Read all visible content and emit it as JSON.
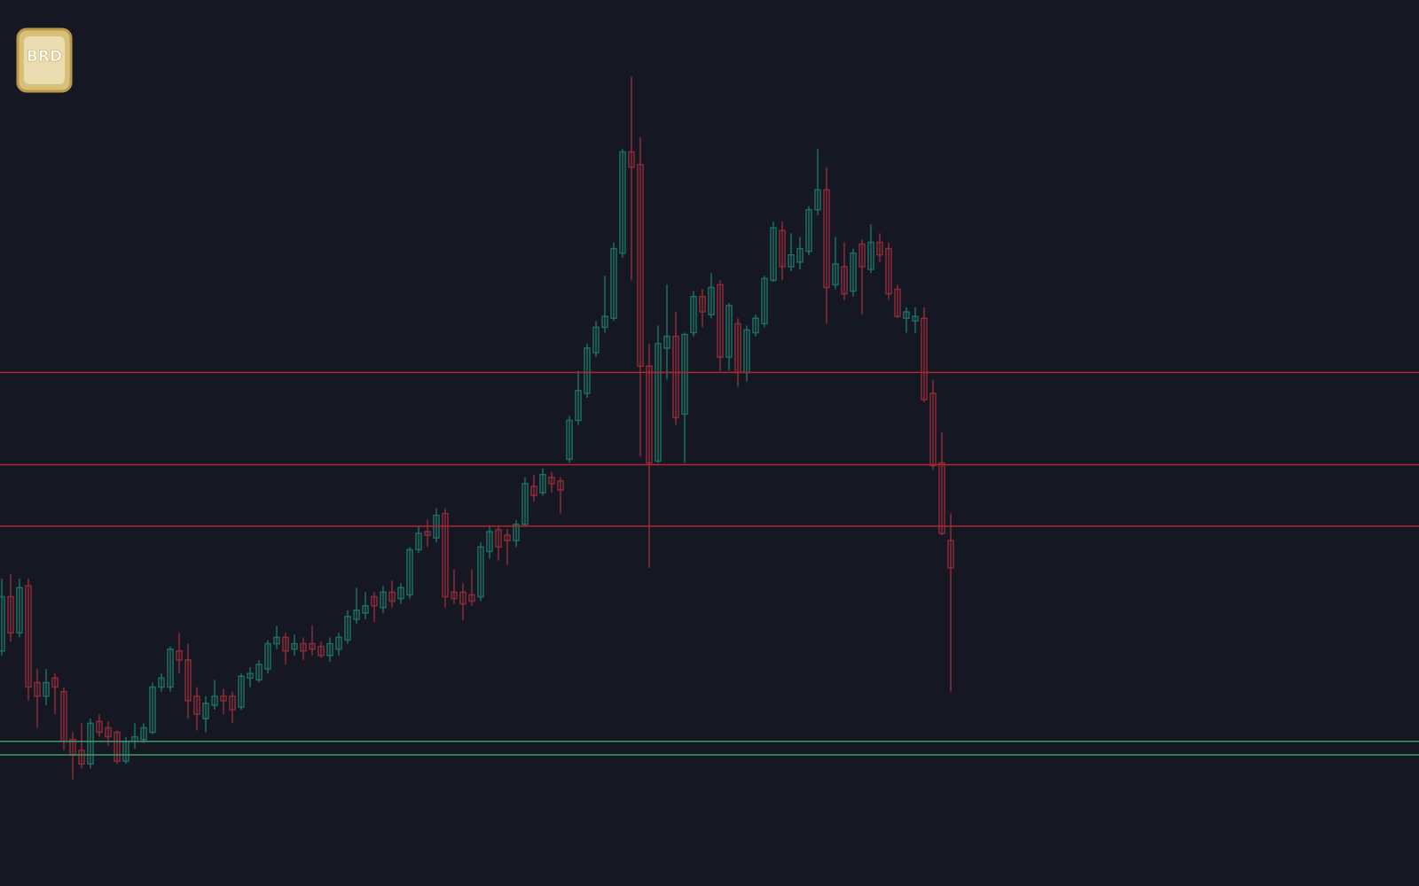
{
  "logo": {
    "text": "BRD"
  },
  "chart_data": {
    "type": "candlestick",
    "up_color": "#1d6e62",
    "down_color": "#8c2a35",
    "ylim": [
      0,
      980
    ],
    "open": [
      260,
      320,
      280,
      332,
      225,
      210,
      230,
      215,
      162,
      150,
      135,
      182,
      175,
      170,
      138,
      160,
      162,
      170,
      220,
      220,
      260,
      250,
      210,
      185,
      200,
      210,
      210,
      198,
      230,
      228,
      240,
      268,
      275,
      262,
      268,
      268,
      265,
      255,
      262,
      272,
      295,
      302,
      320,
      308,
      325,
      318,
      322,
      372,
      392,
      385,
      412,
      325,
      325,
      322,
      320,
      370,
      394,
      388,
      382,
      400,
      442,
      435,
      452,
      448,
      472,
      515,
      545,
      590,
      618,
      628,
      700,
      812,
      798,
      575,
      470,
      595,
      608,
      522,
      612,
      652,
      632,
      665,
      585,
      622,
      568,
      612,
      622,
      670,
      725,
      685,
      690,
      702,
      748,
      770,
      665,
      685,
      658,
      710,
      682,
      712,
      705,
      660,
      628,
      625,
      628,
      545,
      468,
      382
    ],
    "high": [
      340,
      345,
      340,
      340,
      240,
      240,
      235,
      220,
      170,
      180,
      185,
      190,
      182,
      172,
      165,
      180,
      180,
      225,
      235,
      265,
      280,
      268,
      220,
      210,
      228,
      218,
      215,
      235,
      242,
      250,
      272,
      288,
      280,
      278,
      275,
      288,
      270,
      275,
      280,
      305,
      330,
      325,
      325,
      332,
      338,
      335,
      375,
      398,
      405,
      418,
      418,
      350,
      335,
      350,
      380,
      398,
      398,
      395,
      405,
      452,
      455,
      462,
      458,
      452,
      520,
      570,
      600,
      625,
      675,
      712,
      815,
      895,
      828,
      600,
      620,
      665,
      635,
      612,
      658,
      660,
      678,
      670,
      645,
      628,
      620,
      632,
      675,
      735,
      735,
      722,
      718,
      752,
      815,
      795,
      718,
      712,
      705,
      715,
      732,
      722,
      712,
      665,
      640,
      640,
      640,
      560,
      502,
      412
    ],
    "low": [
      255,
      270,
      275,
      205,
      175,
      200,
      190,
      150,
      118,
      130,
      130,
      165,
      155,
      135,
      135,
      152,
      158,
      168,
      215,
      215,
      235,
      185,
      172,
      170,
      195,
      190,
      180,
      195,
      220,
      225,
      235,
      262,
      245,
      255,
      250,
      255,
      252,
      248,
      255,
      268,
      290,
      295,
      292,
      302,
      308,
      312,
      318,
      368,
      375,
      380,
      308,
      312,
      294,
      310,
      315,
      362,
      360,
      355,
      375,
      398,
      425,
      432,
      435,
      412,
      468,
      510,
      540,
      585,
      612,
      625,
      695,
      670,
      475,
      352,
      468,
      560,
      510,
      468,
      608,
      618,
      628,
      570,
      570,
      552,
      558,
      608,
      618,
      668,
      670,
      680,
      682,
      698,
      742,
      622,
      660,
      648,
      652,
      632,
      678,
      690,
      648,
      628,
      612,
      612,
      535,
      460,
      388,
      215
    ],
    "close": [
      320,
      280,
      330,
      220,
      210,
      225,
      220,
      160,
      145,
      135,
      180,
      170,
      165,
      138,
      160,
      165,
      175,
      220,
      230,
      262,
      250,
      205,
      190,
      202,
      210,
      205,
      195,
      232,
      235,
      245,
      268,
      275,
      260,
      268,
      260,
      262,
      255,
      268,
      275,
      298,
      305,
      310,
      310,
      325,
      315,
      330,
      372,
      390,
      388,
      410,
      320,
      318,
      312,
      315,
      375,
      392,
      375,
      382,
      400,
      445,
      432,
      455,
      445,
      438,
      515,
      548,
      595,
      618,
      630,
      705,
      812,
      795,
      575,
      468,
      600,
      608,
      518,
      610,
      652,
      635,
      662,
      585,
      642,
      568,
      615,
      628,
      672,
      728,
      685,
      698,
      705,
      748,
      770,
      662,
      688,
      655,
      700,
      685,
      712,
      698,
      655,
      630,
      635,
      630,
      538,
      465,
      390,
      352
    ],
    "levels": [
      {
        "value": 568,
        "color": "#b3262e"
      },
      {
        "value": 466,
        "color": "#b3262e"
      },
      {
        "value": 398,
        "color": "#b3262e"
      },
      {
        "value": 160,
        "color": "#3f9a6a"
      },
      {
        "value": 145,
        "color": "#3f9a6a"
      }
    ]
  }
}
